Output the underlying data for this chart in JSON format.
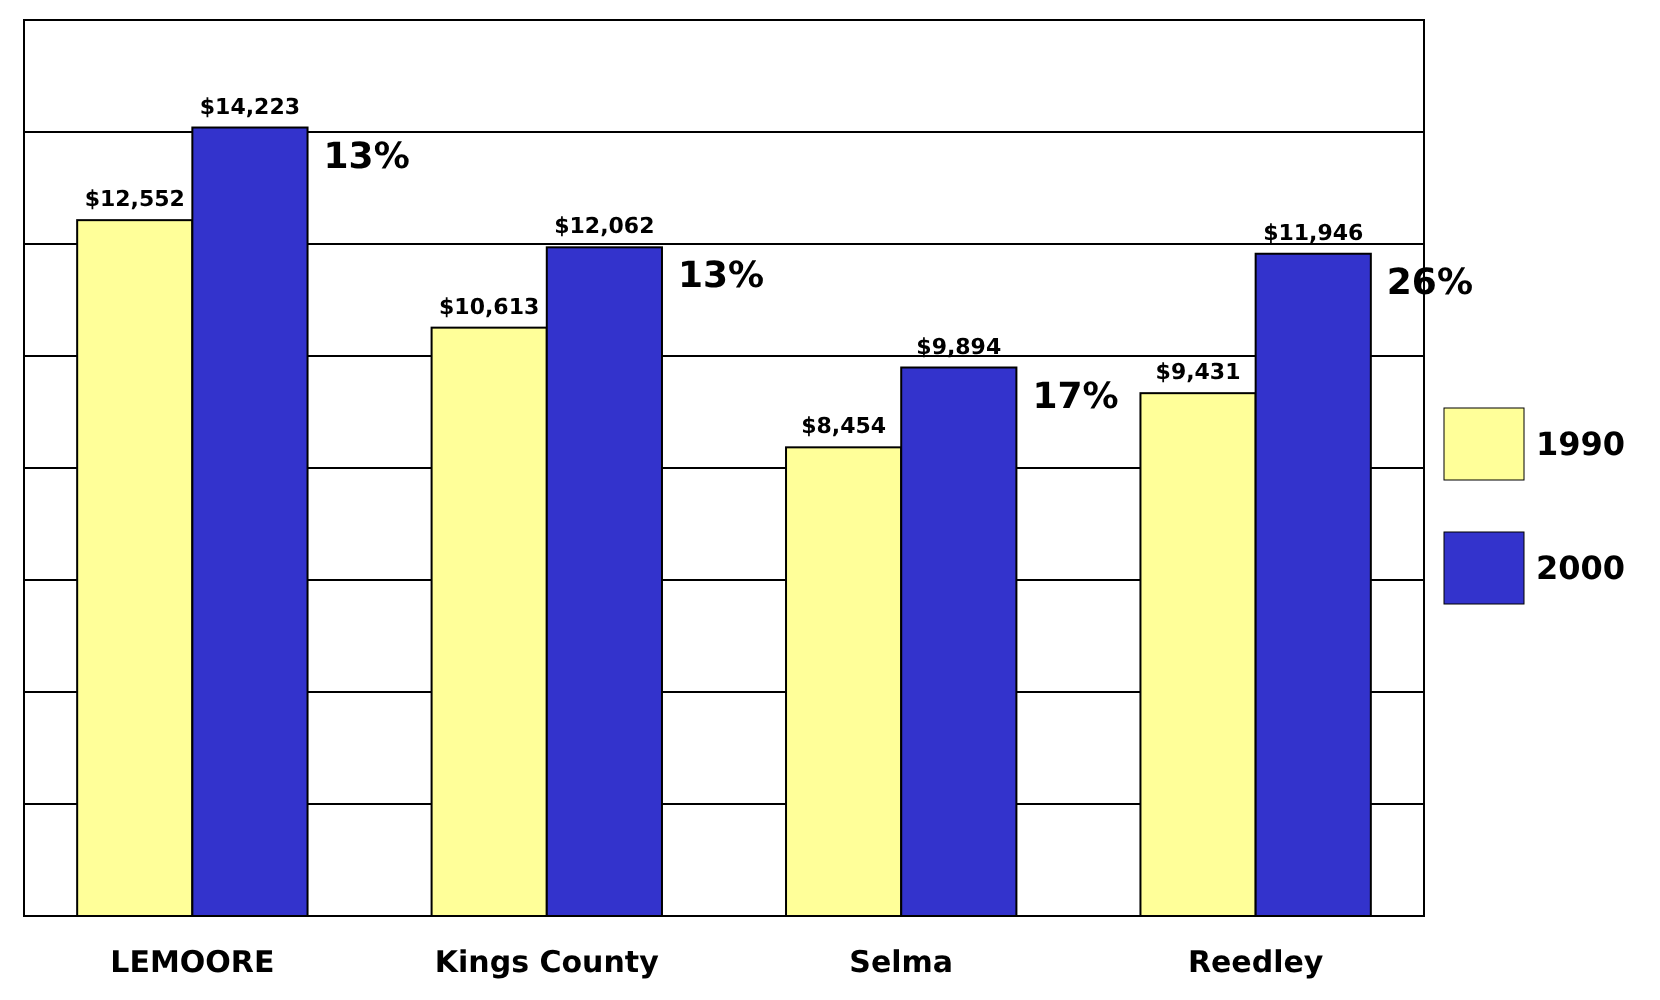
{
  "chart_data": {
    "type": "bar",
    "categories": [
      "LEMOORE",
      "Kings County",
      "Selma",
      "Reedley"
    ],
    "series": [
      {
        "name": "1990",
        "color": "#ffff99",
        "values": [
          12552,
          10613,
          8454,
          9431
        ],
        "value_labels": [
          "$12,552",
          "$10,613",
          "$8,454",
          "$9,431"
        ]
      },
      {
        "name": "2000",
        "color": "#3333cc",
        "values": [
          14223,
          12062,
          9894,
          11946
        ],
        "value_labels": [
          "$14,223",
          "$12,062",
          "$9,894",
          "$11,946"
        ]
      }
    ],
    "grid": "y",
    "legend": "right",
    "tick_labels": "x",
    "annotations": [
      "13%",
      "13%",
      "17%",
      "26%"
    ]
  }
}
